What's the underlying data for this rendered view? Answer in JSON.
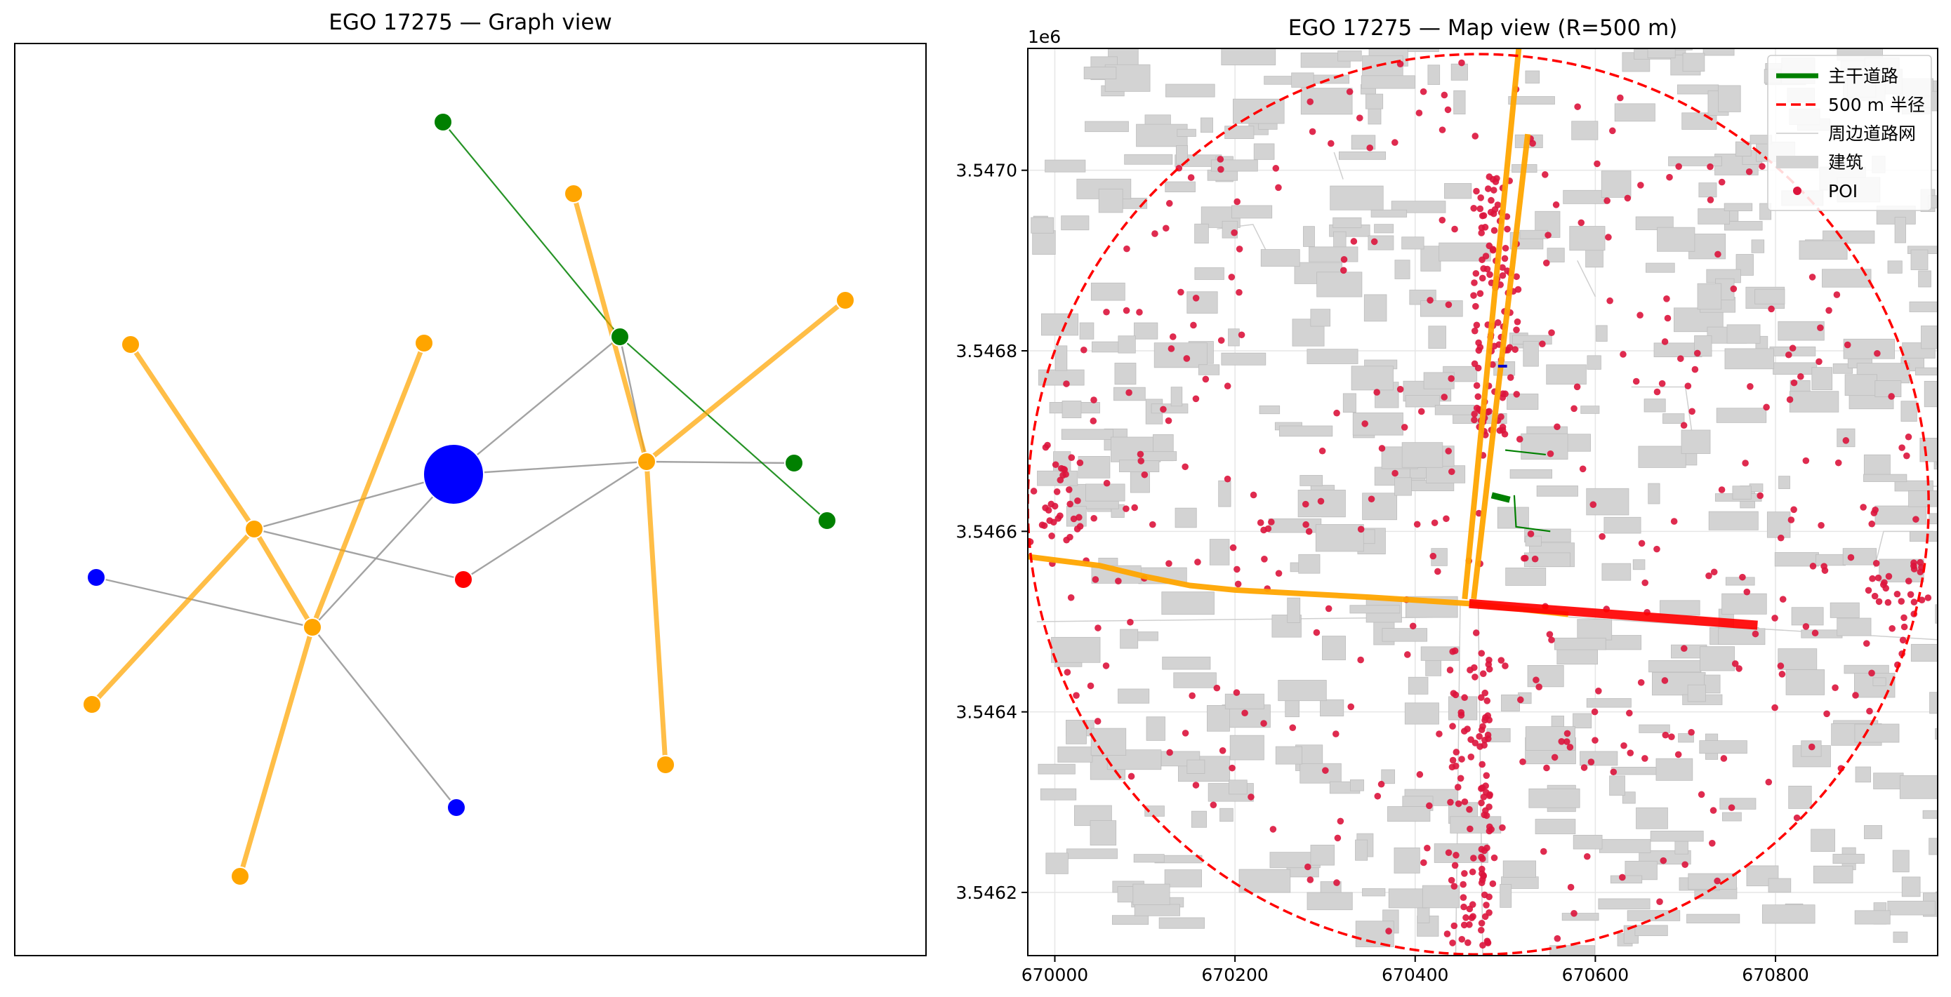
{
  "graph_panel": {
    "title": "EGO 17275 — Graph view"
  },
  "map_panel": {
    "title": "EGO 17275 — Map view (R=500 m)",
    "offset_label": "1e6",
    "legend": [
      {
        "label": "主干道路",
        "style": "line",
        "color": "#008000"
      },
      {
        "label": "500 m 半径",
        "style": "dashed",
        "color": "#ff0000"
      },
      {
        "label": "周边道路网",
        "style": "thin-line",
        "color": "#cccccc"
      },
      {
        "label": "建筑",
        "style": "patch",
        "color": "#d3d3d3"
      },
      {
        "label": "POI",
        "style": "dot",
        "color": "#dc143c"
      }
    ]
  },
  "colors": {
    "ego": "#0000ff",
    "orange": "#ffa500",
    "green": "#008000",
    "red": "#ff0000",
    "gray_edge": "#999999",
    "poi": "#dc143c",
    "building": "#d3d3d3",
    "circle": "#ff0000"
  },
  "chart_data": [
    {
      "type": "network",
      "title": "EGO 17275 — Graph view",
      "nodes": [
        {
          "id": "ego",
          "color": "blue",
          "size": "large"
        },
        {
          "id": "h1",
          "color": "orange"
        },
        {
          "id": "h2",
          "color": "orange"
        },
        {
          "id": "h3",
          "color": "orange"
        },
        {
          "id": "r1",
          "color": "red"
        },
        {
          "id": "b1",
          "color": "blue"
        },
        {
          "id": "b2",
          "color": "blue"
        },
        {
          "id": "g1",
          "color": "green"
        },
        {
          "id": "g2",
          "color": "green"
        },
        {
          "id": "g3",
          "color": "green"
        },
        {
          "id": "g4",
          "color": "green"
        },
        {
          "id": "o1",
          "color": "orange"
        },
        {
          "id": "o2",
          "color": "orange"
        },
        {
          "id": "o3",
          "color": "orange"
        },
        {
          "id": "o4",
          "color": "orange"
        },
        {
          "id": "o5",
          "color": "orange"
        },
        {
          "id": "o6",
          "color": "orange"
        },
        {
          "id": "o7",
          "color": "orange"
        }
      ],
      "edges": [
        {
          "source": "h1",
          "target": "o1",
          "color": "orange"
        },
        {
          "source": "h1",
          "target": "o2",
          "color": "orange"
        },
        {
          "source": "h1",
          "target": "h2",
          "color": "orange"
        },
        {
          "source": "h2",
          "target": "o3",
          "color": "orange"
        },
        {
          "source": "h2",
          "target": "o4",
          "color": "orange"
        },
        {
          "source": "h3",
          "target": "o5",
          "color": "orange"
        },
        {
          "source": "h3",
          "target": "o6",
          "color": "orange"
        },
        {
          "source": "h3",
          "target": "o7",
          "color": "orange"
        },
        {
          "source": "g1",
          "target": "g2",
          "color": "green"
        },
        {
          "source": "g2",
          "target": "g4",
          "color": "green"
        },
        {
          "source": "ego",
          "target": "h1",
          "color": "gray"
        },
        {
          "source": "ego",
          "target": "h2",
          "color": "gray"
        },
        {
          "source": "ego",
          "target": "h3",
          "color": "gray"
        },
        {
          "source": "ego",
          "target": "g2",
          "color": "gray"
        },
        {
          "source": "h1",
          "target": "r1",
          "color": "gray"
        },
        {
          "source": "r1",
          "target": "h3",
          "color": "gray"
        },
        {
          "source": "b1",
          "target": "h2",
          "color": "gray"
        },
        {
          "source": "h2",
          "target": "b2",
          "color": "gray"
        },
        {
          "source": "h3",
          "target": "g3",
          "color": "gray"
        },
        {
          "source": "g2",
          "target": "h3",
          "color": "gray"
        }
      ]
    },
    {
      "type": "map",
      "title": "EGO 17275 — Map view (R=500 m)",
      "x_unit_offset": "",
      "y_unit_offset": "1e6",
      "xlim": [
        669970,
        670980
      ],
      "ylim": [
        3546130,
        3547135
      ],
      "x_ticks": [
        670000,
        670200,
        670400,
        670600,
        670800
      ],
      "x_tick_labels": [
        "670000",
        "670200",
        "670400",
        "670600",
        "670800"
      ],
      "y_ticks": [
        3546200,
        3546400,
        3546600,
        3546800,
        3547000
      ],
      "y_tick_labels": [
        "3.5462",
        "3.5464",
        "3.5466",
        "3.5468",
        "3.5470"
      ],
      "grid": true,
      "legend_position": "upper right",
      "circle": {
        "center": [
          670470,
          3546630
        ],
        "radius": 500
      },
      "ego_road": [
        [
          670460,
          3546520
        ],
        [
          670780,
          3546496
        ]
      ],
      "roads_orange": [
        [
          [
            669970,
            3546572
          ],
          [
            670050,
            3546562
          ],
          [
            670100,
            3546550
          ],
          [
            670150,
            3546540
          ],
          [
            670200,
            3546535
          ],
          [
            670350,
            3546527
          ],
          [
            670460,
            3546520
          ]
        ],
        [
          [
            670460,
            3546520
          ],
          [
            670570,
            3546508
          ]
        ],
        [
          [
            670455,
            3546525
          ],
          [
            670515,
            3547135
          ]
        ],
        [
          [
            670465,
            3546525
          ],
          [
            670525,
            3547040
          ]
        ]
      ],
      "roads_green": [
        [
          [
            670485,
            3546640
          ],
          [
            670505,
            3546635
          ]
        ],
        [
          [
            670500,
            3546690
          ],
          [
            670545,
            3546685
          ]
        ],
        [
          [
            670510,
            3546640
          ],
          [
            670512,
            3546605
          ],
          [
            670550,
            3546600
          ]
        ]
      ],
      "road_blue": [
        [
          670492,
          3546783
        ],
        [
          670502,
          3546783
        ]
      ],
      "poi_count_approx": 600
    }
  ]
}
